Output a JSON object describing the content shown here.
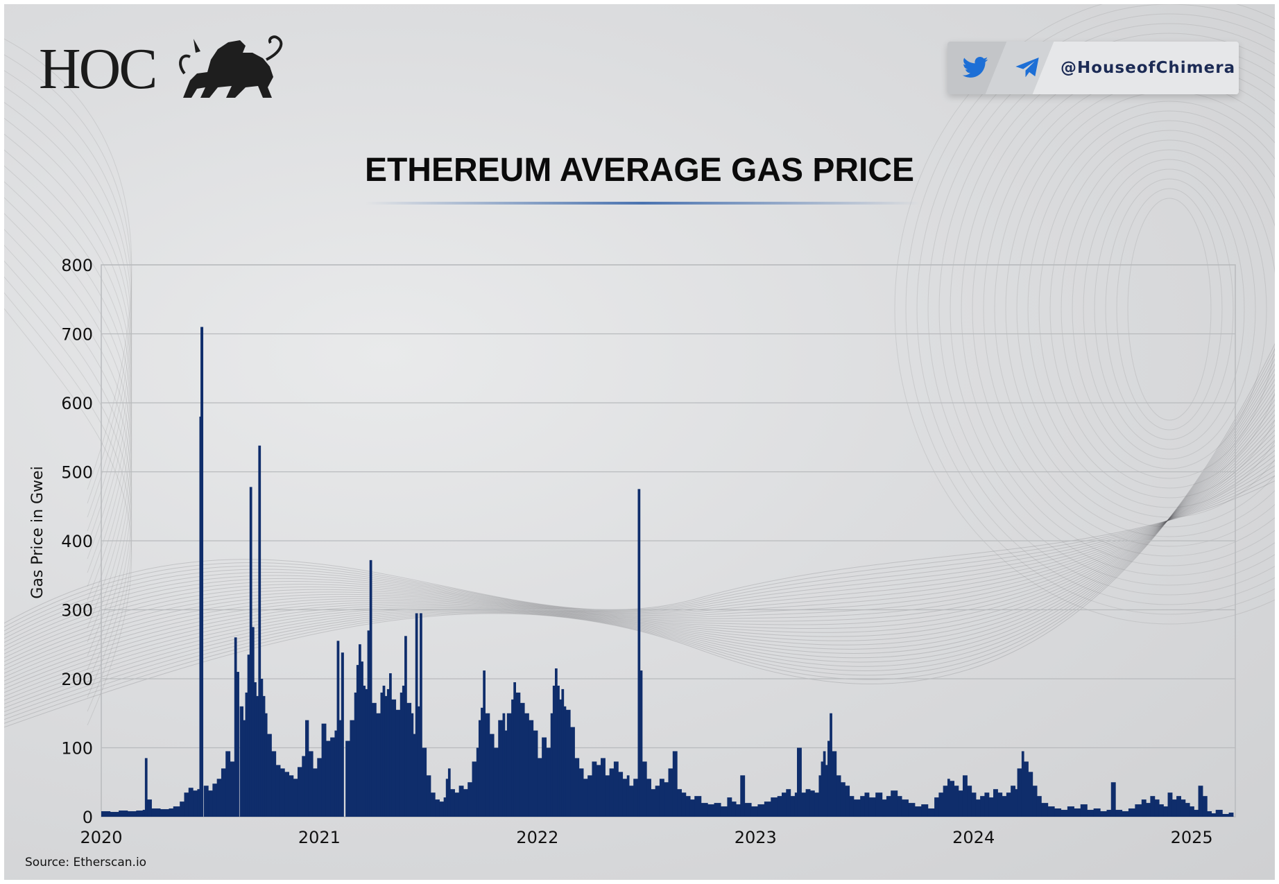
{
  "brand": {
    "logo_text": "HOC",
    "social_handle": "@HouseofChimera",
    "icons": [
      "lion-chimera-icon",
      "twitter-icon",
      "telegram-icon"
    ],
    "twitter_color": "#1d6fd6",
    "telegram_color": "#1d6fd6"
  },
  "source": "Source: Etherscan.io",
  "colors": {
    "bar": "#0f2d6b",
    "grid": "#b8babd",
    "title": "#0b0b0b",
    "accent_line": "#4a73b0"
  },
  "chart_data": {
    "type": "bar",
    "title": "ETHEREUM AVERAGE GAS PRICE",
    "xlabel": "",
    "ylabel": "Gas Price in Gwei",
    "ylim": [
      0,
      800
    ],
    "yticks": [
      0,
      100,
      200,
      300,
      400,
      500,
      600,
      700,
      800
    ],
    "xlim": [
      2020.0,
      2025.2
    ],
    "xticks": [
      2020,
      2021,
      2022,
      2023,
      2024,
      2025
    ],
    "xtick_labels": [
      "2020",
      "2021",
      "2022",
      "2023",
      "2024",
      "2025"
    ],
    "grid": true,
    "legend": "none",
    "series": [
      {
        "name": "Average Gas Price (Gwei)",
        "points": [
          [
            2020.0,
            8
          ],
          [
            2020.04,
            7
          ],
          [
            2020.08,
            9
          ],
          [
            2020.12,
            8
          ],
          [
            2020.16,
            9
          ],
          [
            2020.19,
            10
          ],
          [
            2020.2,
            85
          ],
          [
            2020.21,
            25
          ],
          [
            2020.23,
            12
          ],
          [
            2020.27,
            11
          ],
          [
            2020.31,
            12
          ],
          [
            2020.33,
            15
          ],
          [
            2020.36,
            22
          ],
          [
            2020.38,
            35
          ],
          [
            2020.4,
            42
          ],
          [
            2020.42,
            38
          ],
          [
            2020.44,
            40
          ],
          [
            2020.45,
            580
          ],
          [
            2020.455,
            710
          ],
          [
            2020.47,
            45
          ],
          [
            2020.49,
            38
          ],
          [
            2020.51,
            48
          ],
          [
            2020.53,
            55
          ],
          [
            2020.55,
            70
          ],
          [
            2020.57,
            95
          ],
          [
            2020.59,
            80
          ],
          [
            2020.61,
            260
          ],
          [
            2020.62,
            210
          ],
          [
            2020.635,
            160
          ],
          [
            2020.65,
            140
          ],
          [
            2020.66,
            180
          ],
          [
            2020.67,
            235
          ],
          [
            2020.68,
            478
          ],
          [
            2020.69,
            275
          ],
          [
            2020.7,
            195
          ],
          [
            2020.71,
            175
          ],
          [
            2020.72,
            538
          ],
          [
            2020.73,
            200
          ],
          [
            2020.74,
            175
          ],
          [
            2020.75,
            150
          ],
          [
            2020.76,
            120
          ],
          [
            2020.78,
            95
          ],
          [
            2020.8,
            75
          ],
          [
            2020.82,
            70
          ],
          [
            2020.84,
            65
          ],
          [
            2020.86,
            60
          ],
          [
            2020.88,
            55
          ],
          [
            2020.9,
            72
          ],
          [
            2020.92,
            88
          ],
          [
            2020.935,
            140
          ],
          [
            2020.95,
            95
          ],
          [
            2020.97,
            70
          ],
          [
            2020.99,
            85
          ],
          [
            2021.01,
            135
          ],
          [
            2021.03,
            110
          ],
          [
            2021.05,
            115
          ],
          [
            2021.07,
            125
          ],
          [
            2021.08,
            255
          ],
          [
            2021.09,
            140
          ],
          [
            2021.1,
            238
          ],
          [
            2021.12,
            110
          ],
          [
            2021.14,
            140
          ],
          [
            2021.16,
            180
          ],
          [
            2021.17,
            220
          ],
          [
            2021.18,
            250
          ],
          [
            2021.19,
            225
          ],
          [
            2021.2,
            190
          ],
          [
            2021.21,
            185
          ],
          [
            2021.22,
            270
          ],
          [
            2021.23,
            372
          ],
          [
            2021.24,
            165
          ],
          [
            2021.26,
            150
          ],
          [
            2021.28,
            180
          ],
          [
            2021.29,
            190
          ],
          [
            2021.3,
            175
          ],
          [
            2021.31,
            185
          ],
          [
            2021.32,
            208
          ],
          [
            2021.33,
            170
          ],
          [
            2021.35,
            155
          ],
          [
            2021.37,
            180
          ],
          [
            2021.38,
            190
          ],
          [
            2021.39,
            262
          ],
          [
            2021.4,
            165
          ],
          [
            2021.42,
            150
          ],
          [
            2021.43,
            120
          ],
          [
            2021.44,
            295
          ],
          [
            2021.45,
            160
          ],
          [
            2021.46,
            295
          ],
          [
            2021.47,
            100
          ],
          [
            2021.49,
            60
          ],
          [
            2021.51,
            35
          ],
          [
            2021.53,
            25
          ],
          [
            2021.55,
            22
          ],
          [
            2021.57,
            28
          ],
          [
            2021.58,
            55
          ],
          [
            2021.59,
            70
          ],
          [
            2021.6,
            40
          ],
          [
            2021.62,
            35
          ],
          [
            2021.64,
            45
          ],
          [
            2021.66,
            40
          ],
          [
            2021.68,
            50
          ],
          [
            2021.7,
            80
          ],
          [
            2021.72,
            100
          ],
          [
            2021.73,
            140
          ],
          [
            2021.74,
            158
          ],
          [
            2021.75,
            212
          ],
          [
            2021.76,
            150
          ],
          [
            2021.78,
            120
          ],
          [
            2021.8,
            100
          ],
          [
            2021.82,
            140
          ],
          [
            2021.84,
            150
          ],
          [
            2021.85,
            125
          ],
          [
            2021.86,
            150
          ],
          [
            2021.88,
            170
          ],
          [
            2021.89,
            195
          ],
          [
            2021.9,
            180
          ],
          [
            2021.92,
            165
          ],
          [
            2021.94,
            150
          ],
          [
            2021.96,
            140
          ],
          [
            2021.98,
            125
          ],
          [
            2022.0,
            85
          ],
          [
            2022.02,
            115
          ],
          [
            2022.04,
            100
          ],
          [
            2022.06,
            150
          ],
          [
            2022.07,
            190
          ],
          [
            2022.08,
            215
          ],
          [
            2022.09,
            190
          ],
          [
            2022.1,
            170
          ],
          [
            2022.11,
            185
          ],
          [
            2022.12,
            160
          ],
          [
            2022.13,
            155
          ],
          [
            2022.15,
            130
          ],
          [
            2022.17,
            85
          ],
          [
            2022.19,
            70
          ],
          [
            2022.21,
            55
          ],
          [
            2022.23,
            60
          ],
          [
            2022.25,
            80
          ],
          [
            2022.27,
            75
          ],
          [
            2022.29,
            85
          ],
          [
            2022.31,
            60
          ],
          [
            2022.33,
            70
          ],
          [
            2022.35,
            80
          ],
          [
            2022.37,
            65
          ],
          [
            2022.39,
            55
          ],
          [
            2022.41,
            60
          ],
          [
            2022.42,
            45
          ],
          [
            2022.44,
            55
          ],
          [
            2022.46,
            475
          ],
          [
            2022.47,
            212
          ],
          [
            2022.48,
            80
          ],
          [
            2022.5,
            55
          ],
          [
            2022.52,
            40
          ],
          [
            2022.54,
            45
          ],
          [
            2022.56,
            55
          ],
          [
            2022.58,
            50
          ],
          [
            2022.6,
            70
          ],
          [
            2022.62,
            95
          ],
          [
            2022.64,
            40
          ],
          [
            2022.66,
            35
          ],
          [
            2022.68,
            30
          ],
          [
            2022.7,
            25
          ],
          [
            2022.72,
            30
          ],
          [
            2022.75,
            20
          ],
          [
            2022.78,
            18
          ],
          [
            2022.81,
            20
          ],
          [
            2022.84,
            15
          ],
          [
            2022.87,
            28
          ],
          [
            2022.89,
            22
          ],
          [
            2022.91,
            18
          ],
          [
            2022.93,
            60
          ],
          [
            2022.95,
            20
          ],
          [
            2022.98,
            15
          ],
          [
            2023.01,
            18
          ],
          [
            2023.04,
            22
          ],
          [
            2023.07,
            28
          ],
          [
            2023.1,
            30
          ],
          [
            2023.12,
            35
          ],
          [
            2023.14,
            40
          ],
          [
            2023.16,
            30
          ],
          [
            2023.18,
            35
          ],
          [
            2023.19,
            100
          ],
          [
            2023.21,
            35
          ],
          [
            2023.23,
            40
          ],
          [
            2023.25,
            38
          ],
          [
            2023.27,
            35
          ],
          [
            2023.29,
            60
          ],
          [
            2023.3,
            80
          ],
          [
            2023.31,
            95
          ],
          [
            2023.32,
            75
          ],
          [
            2023.33,
            110
          ],
          [
            2023.34,
            150
          ],
          [
            2023.35,
            95
          ],
          [
            2023.37,
            60
          ],
          [
            2023.39,
            50
          ],
          [
            2023.41,
            45
          ],
          [
            2023.43,
            30
          ],
          [
            2023.45,
            25
          ],
          [
            2023.48,
            30
          ],
          [
            2023.5,
            35
          ],
          [
            2023.52,
            28
          ],
          [
            2023.55,
            35
          ],
          [
            2023.58,
            25
          ],
          [
            2023.6,
            30
          ],
          [
            2023.62,
            38
          ],
          [
            2023.65,
            30
          ],
          [
            2023.67,
            25
          ],
          [
            2023.7,
            20
          ],
          [
            2023.73,
            15
          ],
          [
            2023.76,
            18
          ],
          [
            2023.79,
            12
          ],
          [
            2023.82,
            28
          ],
          [
            2023.84,
            35
          ],
          [
            2023.86,
            45
          ],
          [
            2023.88,
            55
          ],
          [
            2023.89,
            52
          ],
          [
            2023.91,
            45
          ],
          [
            2023.93,
            38
          ],
          [
            2023.95,
            60
          ],
          [
            2023.97,
            45
          ],
          [
            2023.99,
            35
          ],
          [
            2024.01,
            25
          ],
          [
            2024.03,
            30
          ],
          [
            2024.05,
            35
          ],
          [
            2024.07,
            28
          ],
          [
            2024.09,
            40
          ],
          [
            2024.11,
            35
          ],
          [
            2024.13,
            30
          ],
          [
            2024.15,
            35
          ],
          [
            2024.17,
            45
          ],
          [
            2024.19,
            40
          ],
          [
            2024.2,
            70
          ],
          [
            2024.22,
            95
          ],
          [
            2024.23,
            80
          ],
          [
            2024.25,
            65
          ],
          [
            2024.27,
            45
          ],
          [
            2024.29,
            30
          ],
          [
            2024.31,
            20
          ],
          [
            2024.34,
            15
          ],
          [
            2024.37,
            12
          ],
          [
            2024.4,
            10
          ],
          [
            2024.43,
            15
          ],
          [
            2024.46,
            12
          ],
          [
            2024.49,
            18
          ],
          [
            2024.52,
            10
          ],
          [
            2024.55,
            12
          ],
          [
            2024.58,
            8
          ],
          [
            2024.61,
            10
          ],
          [
            2024.63,
            50
          ],
          [
            2024.65,
            10
          ],
          [
            2024.68,
            8
          ],
          [
            2024.71,
            12
          ],
          [
            2024.74,
            18
          ],
          [
            2024.77,
            25
          ],
          [
            2024.79,
            20
          ],
          [
            2024.81,
            30
          ],
          [
            2024.83,
            25
          ],
          [
            2024.85,
            18
          ],
          [
            2024.87,
            15
          ],
          [
            2024.89,
            35
          ],
          [
            2024.91,
            25
          ],
          [
            2024.93,
            30
          ],
          [
            2024.95,
            25
          ],
          [
            2024.97,
            20
          ],
          [
            2024.99,
            15
          ],
          [
            2025.01,
            10
          ],
          [
            2025.03,
            45
          ],
          [
            2025.05,
            30
          ],
          [
            2025.07,
            8
          ],
          [
            2025.09,
            5
          ],
          [
            2025.11,
            10
          ],
          [
            2025.14,
            4
          ],
          [
            2025.17,
            6
          ]
        ]
      }
    ]
  }
}
